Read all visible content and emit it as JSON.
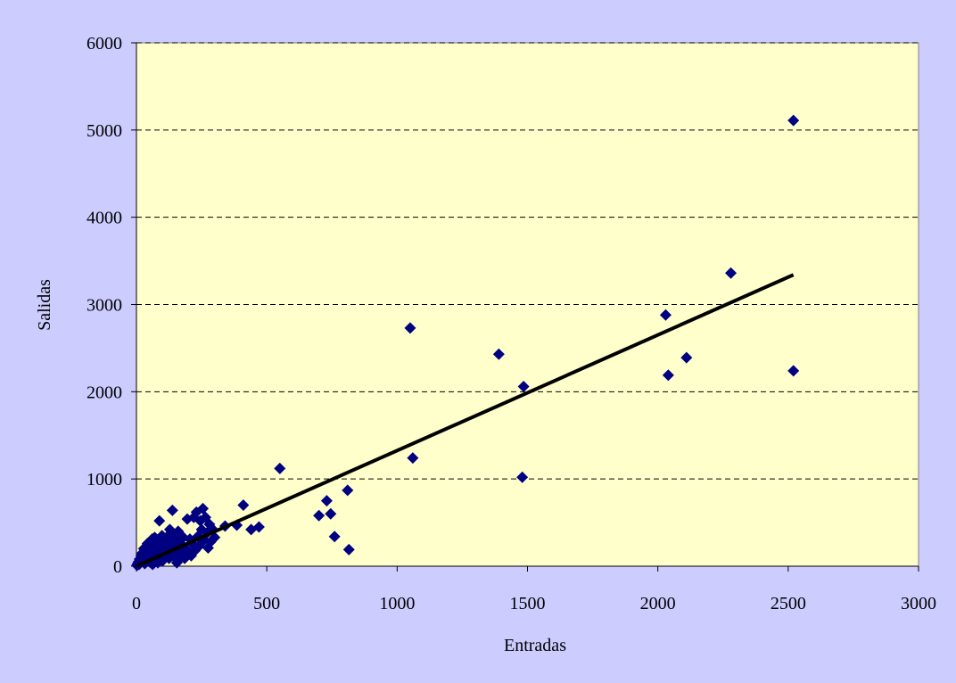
{
  "colors": {
    "outer_background": "#ccccff",
    "plot_background": "#ffffcc",
    "marker": "#000080",
    "trendline": "#000000",
    "gridline": "#000000"
  },
  "chart_data": {
    "type": "scatter",
    "title": "",
    "xlabel": "Entradas",
    "ylabel": "Salidas",
    "xlim": [
      0,
      3000
    ],
    "ylim": [
      0,
      6000
    ],
    "x_ticks": [
      0,
      500,
      1000,
      1500,
      2000,
      2500,
      3000
    ],
    "y_ticks": [
      0,
      1000,
      2000,
      3000,
      4000,
      5000,
      6000
    ],
    "grid": "horizontal-dashed",
    "legend": "none",
    "marker": "diamond",
    "series": [
      {
        "points": [
          [
            2,
            10
          ],
          [
            5,
            30
          ],
          [
            8,
            50
          ],
          [
            10,
            20
          ],
          [
            12,
            80
          ],
          [
            15,
            40
          ],
          [
            18,
            120
          ],
          [
            20,
            60
          ],
          [
            22,
            150
          ],
          [
            25,
            90
          ],
          [
            28,
            200
          ],
          [
            30,
            110
          ],
          [
            32,
            30
          ],
          [
            35,
            160
          ],
          [
            38,
            230
          ],
          [
            40,
            70
          ],
          [
            42,
            260
          ],
          [
            45,
            130
          ],
          [
            48,
            180
          ],
          [
            50,
            50
          ],
          [
            52,
            240
          ],
          [
            55,
            100
          ],
          [
            58,
            200
          ],
          [
            60,
            310
          ],
          [
            62,
            20
          ],
          [
            65,
            150
          ],
          [
            68,
            260
          ],
          [
            70,
            330
          ],
          [
            72,
            60
          ],
          [
            75,
            180
          ],
          [
            78,
            300
          ],
          [
            80,
            120
          ],
          [
            82,
            40
          ],
          [
            85,
            220
          ],
          [
            88,
            520
          ],
          [
            90,
            90
          ],
          [
            92,
            280
          ],
          [
            95,
            160
          ],
          [
            98,
            350
          ],
          [
            100,
            60
          ],
          [
            105,
            240
          ],
          [
            110,
            120
          ],
          [
            115,
            330
          ],
          [
            120,
            190
          ],
          [
            125,
            90
          ],
          [
            128,
            420
          ],
          [
            130,
            280
          ],
          [
            135,
            150
          ],
          [
            138,
            640
          ],
          [
            140,
            360
          ],
          [
            145,
            220
          ],
          [
            148,
            100
          ],
          [
            150,
            300
          ],
          [
            155,
            40
          ],
          [
            158,
            180
          ],
          [
            160,
            400
          ],
          [
            165,
            80
          ],
          [
            170,
            260
          ],
          [
            175,
            140
          ],
          [
            180,
            330
          ],
          [
            185,
            90
          ],
          [
            190,
            200
          ],
          [
            195,
            540
          ],
          [
            200,
            150
          ],
          [
            205,
            310
          ],
          [
            210,
            120
          ],
          [
            215,
            260
          ],
          [
            220,
            560
          ],
          [
            225,
            180
          ],
          [
            230,
            620
          ],
          [
            235,
            340
          ],
          [
            240,
            230
          ],
          [
            245,
            520
          ],
          [
            250,
            420
          ],
          [
            255,
            660
          ],
          [
            260,
            300
          ],
          [
            265,
            560
          ],
          [
            270,
            380
          ],
          [
            275,
            210
          ],
          [
            280,
            480
          ],
          [
            285,
            280
          ],
          [
            290,
            430
          ],
          [
            300,
            330
          ],
          [
            340,
            460
          ],
          [
            385,
            470
          ],
          [
            410,
            700
          ],
          [
            440,
            420
          ],
          [
            470,
            450
          ],
          [
            550,
            1120
          ],
          [
            700,
            580
          ],
          [
            730,
            750
          ],
          [
            745,
            600
          ],
          [
            760,
            340
          ],
          [
            810,
            870
          ],
          [
            815,
            190
          ],
          [
            1050,
            2730
          ],
          [
            1060,
            1240
          ],
          [
            1390,
            2430
          ],
          [
            1480,
            1020
          ],
          [
            1485,
            2060
          ],
          [
            2030,
            2880
          ],
          [
            2040,
            2190
          ],
          [
            2110,
            2390
          ],
          [
            2280,
            3360
          ],
          [
            2520,
            5110
          ],
          [
            2520,
            2240
          ]
        ]
      }
    ],
    "trendline": {
      "x": [
        0,
        2520
      ],
      "y": [
        0,
        3340
      ]
    }
  }
}
